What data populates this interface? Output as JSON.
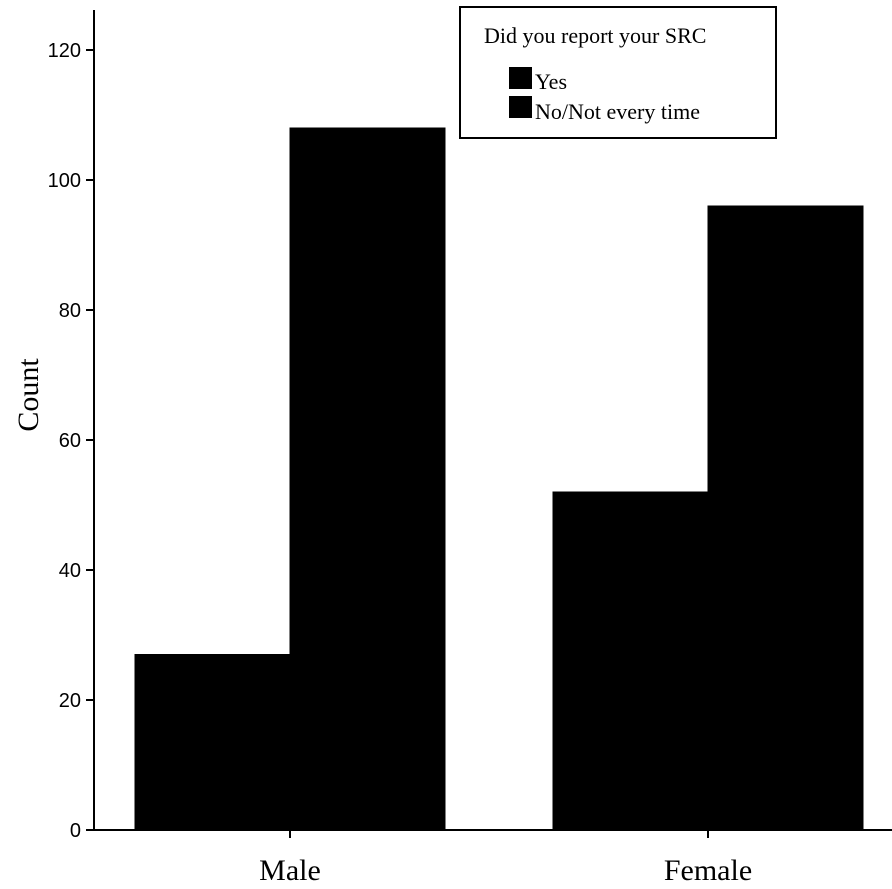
{
  "chart_data": {
    "type": "bar",
    "categories": [
      "Male",
      "Female"
    ],
    "series": [
      {
        "name": "Yes",
        "values": [
          27,
          52
        ]
      },
      {
        "name": "No/Not every time",
        "values": [
          108,
          96
        ]
      }
    ],
    "ylabel": "Count",
    "xlabel": "",
    "ylim": [
      0,
      120
    ],
    "yticks": [
      "0",
      "20",
      "40",
      "60",
      "80",
      "100",
      "120"
    ],
    "legend": {
      "title": "Did you report your SRC",
      "placement": "top-right"
    },
    "bar_color": "#000000",
    "grid": false
  }
}
